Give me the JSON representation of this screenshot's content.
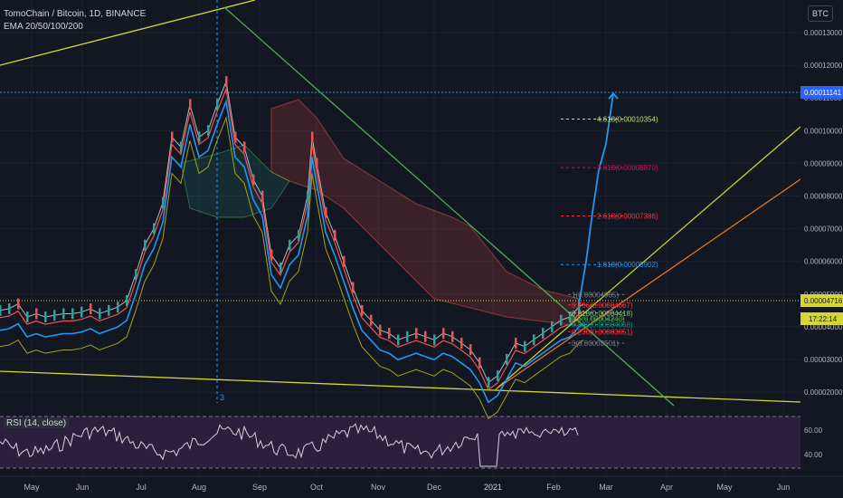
{
  "header": {
    "title": "TomoChain / Bitcoin, 1D, BINANCE",
    "indicator": "EMA 20/50/100/200",
    "currency_button": "BTC"
  },
  "rsi": {
    "label": "RSI (14, close)",
    "ticks": [
      "60.00",
      "40.00"
    ],
    "upper": 70,
    "lower": 30
  },
  "price_axis": {
    "ticks": [
      "0.00013000",
      "0.00012000",
      "0.00011000",
      "0.00010000",
      "0.00009000",
      "0.00008000",
      "0.00007000",
      "0.00006000",
      "0.00005000",
      "0.00004000",
      "0.00003000",
      "0.00002000"
    ],
    "highlight_label": "0.00011141",
    "current_price": "0.00004716",
    "countdown": "17:22:14"
  },
  "time_axis": [
    "May",
    "Jun",
    "Jul",
    "Aug",
    "Sep",
    "Oct",
    "Nov",
    "Dec",
    "2021",
    "Feb",
    "Mar",
    "Apr",
    "May",
    "Jun"
  ],
  "vertical_marker_label": "3",
  "fib_levels": [
    {
      "label": "4.618(0.00010354)",
      "value": 0.00010354,
      "color": "#c9e265"
    },
    {
      "label": "3.618(0.00008870)",
      "value": 8.87e-05,
      "color": "#c2185b"
    },
    {
      "label": "2.618(0.00007386)",
      "value": 7.386e-05,
      "color": "#f23645"
    },
    {
      "label": "1.618(0.00005902)",
      "value": 5.902e-05,
      "color": "#2196f3"
    },
    {
      "label": "1(0.00004985)",
      "value": 4.985e-05,
      "color": "#787b86"
    },
    {
      "label": "0.786(0.00004667)",
      "value": 4.667e-05,
      "color": "#f23645"
    },
    {
      "label": "0.618(0.00004418)",
      "value": 4.418e-05,
      "color": "#81c784"
    },
    {
      "label": "0.5(0.00004243)",
      "value": 4.243e-05,
      "color": "#4caf50"
    },
    {
      "label": "0.382(0.00004068)",
      "value": 4.068e-05,
      "color": "#089981"
    },
    {
      "label": "0.236(0.00003851)",
      "value": 3.851e-05,
      "color": "#f23645"
    },
    {
      "label": "0(0.00003501)",
      "value": 3.501e-05,
      "color": "#787b86"
    }
  ],
  "colors": {
    "background": "#131722",
    "up": "#26a69a",
    "down": "#ef5350",
    "rsi_fill": "#2b1f3d",
    "projection": "#2196f3",
    "trendline_yellow": "#d6d633",
    "trendline_green": "#4caf50",
    "channel_orange": "#e67e22"
  },
  "chart_data": {
    "type": "line",
    "title": "TomoChain / Bitcoin, 1D, BINANCE",
    "ylim": [
      1.5e-05,
      0.000135
    ],
    "x": [
      "May",
      "Jun",
      "Jul",
      "Aug",
      "Sep",
      "Oct",
      "Nov",
      "Dec",
      "2021",
      "Feb"
    ],
    "series": [
      {
        "name": "EMA 20/50/100/200",
        "values": [
          4.65e-05,
          4.35e-05,
          6.5e-05,
          0.00011,
          9e-05,
          8.2e-05,
          4e-05,
          3.7e-05,
          2.5e-05,
          4.5e-05
        ]
      }
    ],
    "price_path": [
      [
        0,
        4.5e-05
      ],
      [
        10,
        4.55e-05
      ],
      [
        20,
        4.7e-05
      ],
      [
        30,
        4.3e-05
      ],
      [
        40,
        4.4e-05
      ],
      [
        50,
        4.3e-05
      ],
      [
        60,
        4.35e-05
      ],
      [
        70,
        4.4e-05
      ],
      [
        80,
        4.4e-05
      ],
      [
        90,
        4.45e-05
      ],
      [
        100,
        4.55e-05
      ],
      [
        110,
        4.4e-05
      ],
      [
        120,
        4.5e-05
      ],
      [
        130,
        4.6e-05
      ],
      [
        140,
        4.8e-05
      ],
      [
        150,
        5.6e-05
      ],
      [
        160,
        6.5e-05
      ],
      [
        170,
        7e-05
      ],
      [
        180,
        7.8e-05
      ],
      [
        190,
        9.8e-05
      ],
      [
        200,
        9.5e-05
      ],
      [
        210,
        0.000108
      ],
      [
        220,
        9.8e-05
      ],
      [
        230,
        0.0001
      ],
      [
        240,
        0.000108
      ],
      [
        250,
        0.000115
      ],
      [
        260,
        9.8e-05
      ],
      [
        270,
        9.5e-05
      ],
      [
        280,
        8.5e-05
      ],
      [
        290,
        8e-05
      ],
      [
        300,
        6.2e-05
      ],
      [
        310,
        5.8e-05
      ],
      [
        320,
        6.5e-05
      ],
      [
        330,
        6.8e-05
      ],
      [
        340,
        8e-05
      ],
      [
        345,
        9.8e-05
      ],
      [
        350,
        9e-05
      ],
      [
        360,
        7.5e-05
      ],
      [
        370,
        6.8e-05
      ],
      [
        380,
        6e-05
      ],
      [
        390,
        5.2e-05
      ],
      [
        400,
        4.5e-05
      ],
      [
        410,
        4.2e-05
      ],
      [
        420,
        3.9e-05
      ],
      [
        430,
        3.8e-05
      ],
      [
        440,
        3.6e-05
      ],
      [
        450,
        3.7e-05
      ],
      [
        460,
        3.8e-05
      ],
      [
        470,
        3.7e-05
      ],
      [
        480,
        3.6e-05
      ],
      [
        490,
        3.8e-05
      ],
      [
        500,
        3.7e-05
      ],
      [
        510,
        3.5e-05
      ],
      [
        520,
        3.3e-05
      ],
      [
        530,
        2.9e-05
      ],
      [
        540,
        2.3e-05
      ],
      [
        550,
        2.5e-05
      ],
      [
        560,
        3e-05
      ],
      [
        570,
        3.5e-05
      ],
      [
        580,
        3.4e-05
      ],
      [
        590,
        3.6e-05
      ],
      [
        600,
        3.8e-05
      ],
      [
        610,
        4e-05
      ],
      [
        620,
        4.2e-05
      ],
      [
        630,
        4.3e-05
      ],
      [
        640,
        4.6e-05
      ],
      [
        645,
        4.7e-05
      ]
    ],
    "projection_path": [
      [
        640,
        4.7e-05
      ],
      [
        648,
        6e-05
      ],
      [
        655,
        7.5e-05
      ],
      [
        662,
        8.8e-05
      ],
      [
        670,
        9.6e-05
      ],
      [
        678,
        0.0001114
      ]
    ]
  }
}
